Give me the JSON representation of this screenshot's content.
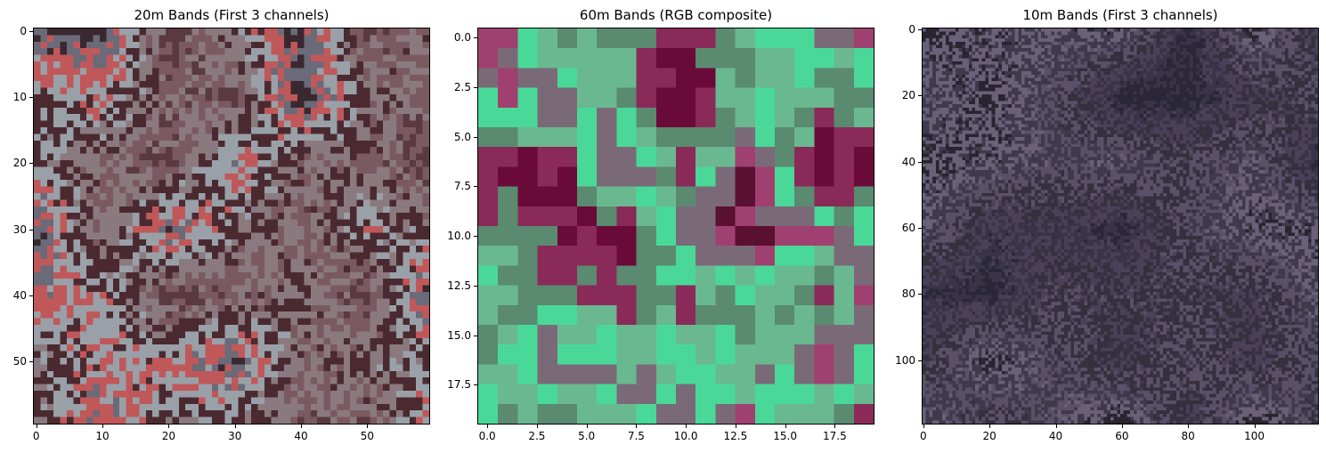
{
  "chart_data": [
    {
      "type": "heatmap",
      "title": "20m Bands (First 3 channels)",
      "x_ticks": [
        0,
        10,
        20,
        30,
        40,
        50
      ],
      "y_ticks": [
        0,
        10,
        20,
        30,
        40,
        50
      ],
      "xlim": [
        -0.5,
        59.5
      ],
      "ylim": [
        59.5,
        -0.5
      ],
      "grid": 60,
      "palette": [
        "#5a3a40",
        "#7a5a60",
        "#8a7a80",
        "#4a2a30",
        "#9aa0a8",
        "#c0585a",
        "#6a6a78",
        "#3a2830"
      ]
    },
    {
      "type": "heatmap",
      "title": "60m Bands (RGB composite)",
      "x_ticks": [
        "0.0",
        "2.5",
        "5.0",
        "7.5",
        "10.0",
        "12.5",
        "15.0",
        "17.5"
      ],
      "y_ticks": [
        "0.0",
        "2.5",
        "5.0",
        "7.5",
        "10.0",
        "12.5",
        "15.0",
        "17.5"
      ],
      "xlim": [
        -0.5,
        19.5
      ],
      "ylim": [
        19.5,
        -0.5
      ],
      "grid": 20,
      "palette": [
        "#6a0a38",
        "#8a2a58",
        "#5a8a70",
        "#6ab890",
        "#4ad898",
        "#7a6a78",
        "#a04070",
        "#5a1030"
      ]
    },
    {
      "type": "heatmap",
      "title": "10m Bands (First 3 channels)",
      "x_ticks": [
        0,
        20,
        40,
        60,
        80,
        100
      ],
      "y_ticks": [
        0,
        20,
        40,
        60,
        80,
        100
      ],
      "xlim": [
        -0.5,
        119.5
      ],
      "ylim": [
        119.5,
        -0.5
      ],
      "grid": 120,
      "palette": [
        "#2a2838",
        "#3a3448",
        "#4a4058",
        "#34303e",
        "#5a5068",
        "#3e3a4c",
        "#6a6078",
        "#282430"
      ]
    }
  ]
}
